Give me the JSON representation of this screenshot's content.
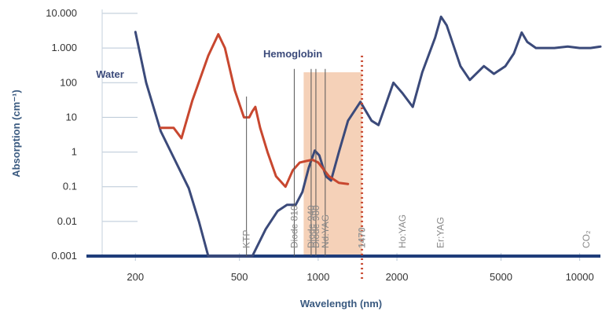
{
  "chart_data": {
    "type": "line",
    "title": "",
    "xlabel": "Wavelength (nm)",
    "ylabel": "Absorption (cm⁻¹)",
    "xscale": "log",
    "yscale": "log",
    "xlim": [
      130,
      12000
    ],
    "ylim": [
      0.001,
      10000
    ],
    "xticks": [
      {
        "value": 200,
        "label": "200"
      },
      {
        "value": 500,
        "label": "500"
      },
      {
        "value": 1000,
        "label": "1000"
      },
      {
        "value": 2000,
        "label": "2000"
      },
      {
        "value": 5000,
        "label": "5000"
      },
      {
        "value": 10000,
        "label": "10000"
      }
    ],
    "yticks": [
      {
        "value": 10000,
        "label": "10.000"
      },
      {
        "value": 1000,
        "label": "1.000"
      },
      {
        "value": 100,
        "label": "100"
      },
      {
        "value": 10,
        "label": "10"
      },
      {
        "value": 1,
        "label": "1"
      },
      {
        "value": 0.1,
        "label": "0.1"
      },
      {
        "value": 0.01,
        "label": "0.01"
      },
      {
        "value": 0.001,
        "label": "0.001"
      }
    ],
    "grid": true,
    "colors": {
      "water": "#3b4a7a",
      "hemoglobin": "#c8472f",
      "highlight": "#f3c9ab",
      "highlight_line": "#c8472f",
      "baseline": "#1f3d7a"
    },
    "series": [
      {
        "name": "Water",
        "color": "#3b4a7a",
        "points": [
          [
            200,
            2900
          ],
          [
            220,
            100
          ],
          [
            250,
            4
          ],
          [
            280,
            0.7
          ],
          [
            320,
            0.09
          ],
          [
            350,
            0.01
          ],
          [
            380,
            0.001
          ],
          [
            560,
            0.001
          ],
          [
            630,
            0.006
          ],
          [
            700,
            0.02
          ],
          [
            760,
            0.03
          ],
          [
            820,
            0.03
          ],
          [
            870,
            0.07
          ],
          [
            920,
            0.35
          ],
          [
            970,
            1.1
          ],
          [
            1010,
            0.8
          ],
          [
            1070,
            0.2
          ],
          [
            1120,
            0.15
          ],
          [
            1200,
            1
          ],
          [
            1300,
            8
          ],
          [
            1450,
            28
          ],
          [
            1600,
            8
          ],
          [
            1700,
            6
          ],
          [
            1800,
            20
          ],
          [
            1940,
            100
          ],
          [
            2100,
            50
          ],
          [
            2300,
            20
          ],
          [
            2500,
            200
          ],
          [
            2800,
            2000
          ],
          [
            2950,
            8000
          ],
          [
            3100,
            4500
          ],
          [
            3500,
            300
          ],
          [
            3800,
            120
          ],
          [
            4300,
            300
          ],
          [
            4700,
            180
          ],
          [
            5200,
            300
          ],
          [
            5600,
            700
          ],
          [
            6000,
            2800
          ],
          [
            6300,
            1500
          ],
          [
            6800,
            1000
          ],
          [
            8000,
            1000
          ],
          [
            9000,
            1100
          ],
          [
            10000,
            1000
          ],
          [
            11000,
            1000
          ],
          [
            12000,
            1100
          ]
        ]
      },
      {
        "name": "Hemoglobin",
        "color": "#c8472f",
        "points": [
          [
            250,
            5
          ],
          [
            280,
            5
          ],
          [
            300,
            2.5
          ],
          [
            330,
            30
          ],
          [
            380,
            600
          ],
          [
            415,
            2500
          ],
          [
            440,
            1000
          ],
          [
            480,
            60
          ],
          [
            520,
            10
          ],
          [
            545,
            10
          ],
          [
            560,
            15
          ],
          [
            575,
            20
          ],
          [
            600,
            5
          ],
          [
            640,
            1
          ],
          [
            690,
            0.2
          ],
          [
            750,
            0.1
          ],
          [
            800,
            0.3
          ],
          [
            850,
            0.5
          ],
          [
            900,
            0.55
          ],
          [
            950,
            0.6
          ],
          [
            1000,
            0.5
          ],
          [
            1100,
            0.2
          ],
          [
            1200,
            0.13
          ],
          [
            1300,
            0.12
          ]
        ]
      }
    ],
    "highlight_band": {
      "from": 880,
      "to": 1470
    },
    "laser_lines": [
      {
        "label": "KTP",
        "wavelength": 532,
        "top": 40
      },
      {
        "label": "Diode 810",
        "wavelength": 810,
        "top": 250
      },
      {
        "label": "Diode 940",
        "wavelength": 940,
        "top": 250
      },
      {
        "label": "Diode 980",
        "wavelength": 980,
        "top": 250
      },
      {
        "label": "Nd:YAG",
        "wavelength": 1064,
        "top": 250
      }
    ],
    "laser_markers": [
      {
        "label": "1470",
        "wavelength": 1470,
        "bold": true
      },
      {
        "label": "Ho:YAG",
        "wavelength": 2100,
        "bold": false
      },
      {
        "label": "Er:YAG",
        "wavelength": 2940,
        "bold": false
      },
      {
        "label": "CO₂",
        "wavelength": 10600,
        "bold": false
      }
    ],
    "annotations": [
      {
        "text": "Water",
        "series": "Water",
        "at": [
          160,
          180
        ]
      },
      {
        "text": "Hemoglobin",
        "series": "Hemoglobin",
        "at": [
          800,
          700
        ]
      }
    ]
  }
}
